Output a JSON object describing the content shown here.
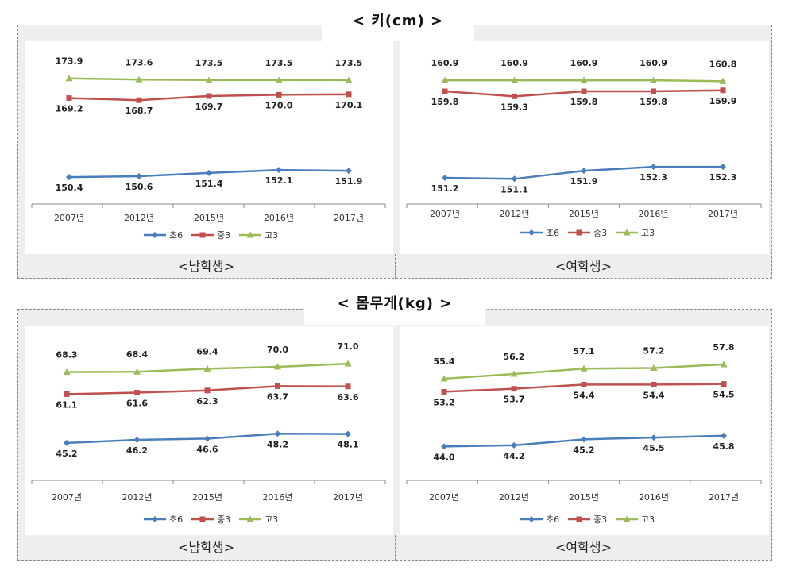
{
  "sections": [
    {
      "title": "< 키(cm) >",
      "captions": [
        "<남학생>",
        "<여학생>"
      ]
    },
    {
      "title": "< 몸무게(kg) >",
      "captions": [
        "<남학생>",
        "<여학생>"
      ]
    }
  ],
  "colors": {
    "초6": "#4a7ebb",
    "중3": "#c0504d",
    "고3": "#9bbb59"
  },
  "chart_data": [
    {
      "type": "line",
      "categories": [
        "2007년",
        "2012년",
        "2015년",
        "2016년",
        "2017년"
      ],
      "series": [
        {
          "name": "초6",
          "values": [
            150.4,
            150.6,
            151.4,
            152.1,
            151.9
          ]
        },
        {
          "name": "중3",
          "values": [
            169.2,
            168.7,
            169.7,
            170.0,
            170.1
          ]
        },
        {
          "name": "고3",
          "values": [
            173.9,
            173.6,
            173.5,
            173.5,
            173.5
          ]
        }
      ],
      "labels": [
        [
          "150.4",
          "150.6",
          "151.4",
          "152.1",
          "151.9"
        ],
        [
          "169.2",
          "168.7",
          "169.7",
          "170.0",
          "170.1"
        ],
        [
          "173.9",
          "173.6",
          "173.5",
          "173.5",
          "173.5"
        ]
      ],
      "ylim": [
        144,
        178
      ],
      "legend_position": "bottom"
    },
    {
      "type": "line",
      "categories": [
        "2007년",
        "2012년",
        "2015년",
        "2016년",
        "2017년"
      ],
      "series": [
        {
          "name": "초6",
          "values": [
            151.2,
            151.1,
            151.9,
            152.3,
            152.3
          ]
        },
        {
          "name": "중3",
          "values": [
            159.8,
            159.3,
            159.8,
            159.8,
            159.9
          ]
        },
        {
          "name": "고3",
          "values": [
            160.9,
            160.9,
            160.9,
            160.9,
            160.8
          ]
        }
      ],
      "labels": [
        [
          "151.2",
          "151.1",
          "151.9",
          "152.3",
          "152.3"
        ],
        [
          "159.8",
          "159.3",
          "159.8",
          "159.8",
          "159.9"
        ],
        [
          "160.9",
          "160.9",
          "160.9",
          "160.9",
          "160.8"
        ]
      ],
      "ylim": [
        148.6,
        162.8
      ],
      "legend_position": "bottom"
    },
    {
      "type": "line",
      "categories": [
        "2007년",
        "2012년",
        "2015년",
        "2016년",
        "2017년"
      ],
      "series": [
        {
          "name": "초6",
          "values": [
            45.2,
            46.2,
            46.6,
            48.2,
            48.1
          ]
        },
        {
          "name": "중3",
          "values": [
            61.1,
            61.6,
            62.3,
            63.7,
            63.6
          ]
        },
        {
          "name": "고3",
          "values": [
            68.3,
            68.4,
            69.4,
            70.0,
            71.0
          ]
        }
      ],
      "labels": [
        [
          "45.2",
          "46.2",
          "46.6",
          "48.2",
          "48.1"
        ],
        [
          "61.1",
          "61.6",
          "62.3",
          "63.7",
          "63.6"
        ],
        [
          "68.3",
          "68.4",
          "69.4",
          "70.0",
          "71.0"
        ]
      ],
      "ylim": [
        33,
        77
      ],
      "legend_position": "bottom"
    },
    {
      "type": "line",
      "categories": [
        "2007년",
        "2012년",
        "2015년",
        "2016년",
        "2017년"
      ],
      "series": [
        {
          "name": "초6",
          "values": [
            44.0,
            44.2,
            45.2,
            45.5,
            45.8
          ]
        },
        {
          "name": "중3",
          "values": [
            53.2,
            53.7,
            54.4,
            54.4,
            54.5
          ]
        },
        {
          "name": "고3",
          "values": [
            55.4,
            56.2,
            57.1,
            57.2,
            57.8
          ]
        }
      ],
      "labels": [
        [
          "44.0",
          "44.2",
          "45.2",
          "45.5",
          "45.8"
        ],
        [
          "53.2",
          "53.7",
          "54.4",
          "54.4",
          "54.5"
        ],
        [
          "55.4",
          "56.2",
          "57.1",
          "57.2",
          "57.8"
        ]
      ],
      "ylim": [
        38.3,
        61
      ],
      "legend_position": "bottom"
    }
  ]
}
